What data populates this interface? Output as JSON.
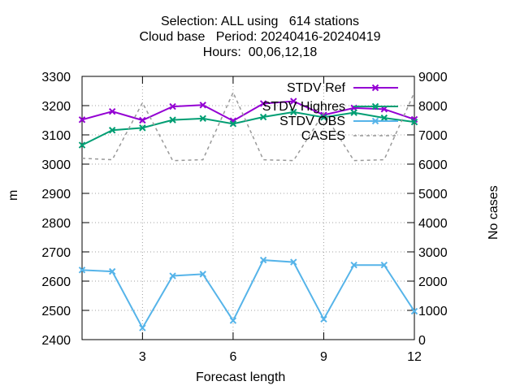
{
  "chart_data": {
    "type": "line",
    "title_lines": [
      "Selection: ALL using   614 stations",
      "Cloud base   Period: 20240416-20240419",
      "Hours:  00,06,12,18"
    ],
    "xlabel": "Forecast length",
    "ylabel": "m",
    "y2label": "No cases",
    "xlim": [
      1,
      12
    ],
    "ylim": [
      2400,
      3300
    ],
    "y2lim": [
      0,
      9000
    ],
    "x_ticks": [
      3,
      6,
      9,
      12
    ],
    "y_ticks": [
      2400,
      2500,
      2600,
      2700,
      2800,
      2900,
      3000,
      3100,
      3200,
      3300
    ],
    "y2_ticks": [
      0,
      1000,
      2000,
      3000,
      4000,
      5000,
      6000,
      7000,
      8000,
      9000
    ],
    "grid": true,
    "legend_position": "top-right",
    "x": [
      1,
      2,
      3,
      4,
      5,
      6,
      7,
      8,
      9,
      10,
      11,
      12
    ],
    "series": [
      {
        "name": "STDV Ref",
        "axis": "y",
        "color": "#9400d3",
        "marker": "x",
        "dashed": false,
        "values": [
          3152,
          3180,
          3150,
          3197,
          3202,
          3148,
          3207,
          3215,
          3168,
          3192,
          3188,
          3153
        ]
      },
      {
        "name": "STDV Highres",
        "axis": "y",
        "color": "#009e73",
        "marker": "x",
        "dashed": false,
        "values": [
          3065,
          3116,
          3124,
          3151,
          3156,
          3138,
          3161,
          3178,
          3160,
          3176,
          3158,
          3144
        ]
      },
      {
        "name": "STDV OBS",
        "axis": "y",
        "color": "#56b4e9",
        "marker": "x",
        "dashed": false,
        "values": [
          2638,
          2633,
          2440,
          2618,
          2624,
          2465,
          2672,
          2665,
          2470,
          2655,
          2655,
          2497
        ]
      },
      {
        "name": "CASES",
        "axis": "y2",
        "color": "#999999",
        "marker": "none",
        "dashed": true,
        "values": [
          6200,
          6150,
          8100,
          6120,
          6150,
          8450,
          6150,
          6120,
          7750,
          6120,
          6150,
          8450
        ]
      }
    ]
  }
}
